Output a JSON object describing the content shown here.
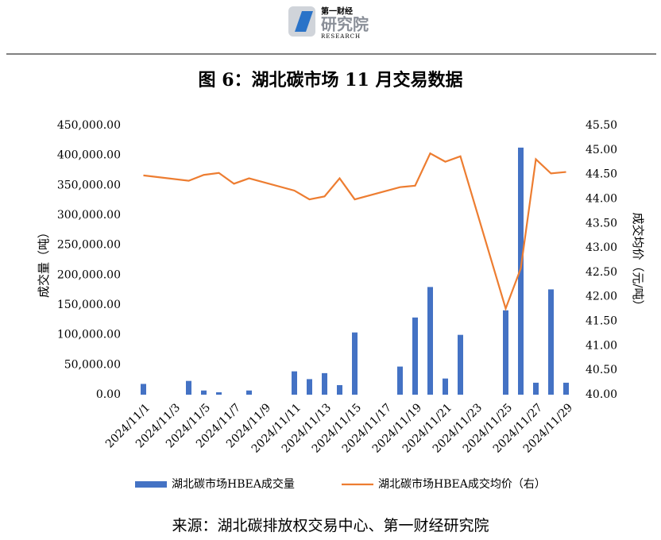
{
  "logo": {
    "name": "第一财经",
    "title": "研究院",
    "subtitle": "RESEARCH"
  },
  "source": "来源：湖北碳排放权交易中心、第一财经研究院",
  "chart_data": {
    "type": "bar_line",
    "title": "图 6：湖北碳市场 11 月交易数据",
    "y_label": "成交量（吨）",
    "y2_label": "成交均价（元/吨）",
    "x": [
      "2024/11/1",
      "2024/11/4",
      "2024/11/5",
      "2024/11/6",
      "2024/11/7",
      "2024/11/8",
      "2024/11/11",
      "2024/11/12",
      "2024/11/13",
      "2024/11/14",
      "2024/11/15",
      "2024/11/18",
      "2024/11/19",
      "2024/11/20",
      "2024/11/21",
      "2024/11/22",
      "2024/11/25",
      "2024/11/26",
      "2024/11/27",
      "2024/11/28",
      "2024/11/29"
    ],
    "xticks": [
      "2024/11/1",
      "2024/11/3",
      "2024/11/5",
      "2024/11/7",
      "2024/11/9",
      "2024/11/11",
      "2024/11/13",
      "2024/11/15",
      "2024/11/17",
      "2024/11/19",
      "2024/11/21",
      "2024/11/23",
      "2024/11/25",
      "2024/11/27",
      "2024/11/29"
    ],
    "series": [
      {
        "name": "湖北碳市场HBEA成交量",
        "color": "#4472c4",
        "type": "bar",
        "values": [
          18000,
          23000,
          7000,
          4000,
          0,
          7000,
          39000,
          26000,
          36000,
          16000,
          104000,
          47000,
          129000,
          180000,
          27000,
          100000,
          141000,
          413000,
          20000,
          176000,
          20000
        ]
      },
      {
        "name": "湖北碳市场HBEA成交均价（右）",
        "color": "#ed7d31",
        "type": "line",
        "axis": "y2",
        "values": [
          44.48,
          44.37,
          44.49,
          44.53,
          44.31,
          44.42,
          44.17,
          43.99,
          44.05,
          44.42,
          43.99,
          44.24,
          44.27,
          44.93,
          44.76,
          44.87,
          41.76,
          42.58,
          44.81,
          44.52,
          44.55
        ]
      }
    ],
    "ylim": [
      0,
      450000
    ],
    "yticks": [
      {
        "value": 0,
        "label": "0.00"
      },
      {
        "value": 50000,
        "label": "50,000.00"
      },
      {
        "value": 100000,
        "label": "100,000.00"
      },
      {
        "value": 150000,
        "label": "150,000.00"
      },
      {
        "value": 200000,
        "label": "200,000.00"
      },
      {
        "value": 250000,
        "label": "250,000.00"
      },
      {
        "value": 300000,
        "label": "300,000.00"
      },
      {
        "value": 350000,
        "label": "350,000.00"
      },
      {
        "value": 400000,
        "label": "400,000.00"
      },
      {
        "value": 450000,
        "label": "450,000.00"
      }
    ],
    "y2lim": [
      40,
      45.5
    ],
    "y2ticks": [
      {
        "value": 40,
        "label": "40.00"
      },
      {
        "value": 40.5,
        "label": "40.50"
      },
      {
        "value": 41,
        "label": "41.00"
      },
      {
        "value": 41.5,
        "label": "41.50"
      },
      {
        "value": 42,
        "label": "42.00"
      },
      {
        "value": 42.5,
        "label": "42.50"
      },
      {
        "value": 43,
        "label": "43.00"
      },
      {
        "value": 43.5,
        "label": "43.50"
      },
      {
        "value": 44,
        "label": "44.00"
      },
      {
        "value": 44.5,
        "label": "44.50"
      },
      {
        "value": 45,
        "label": "45.00"
      },
      {
        "value": 45.5,
        "label": "45.50"
      }
    ]
  }
}
